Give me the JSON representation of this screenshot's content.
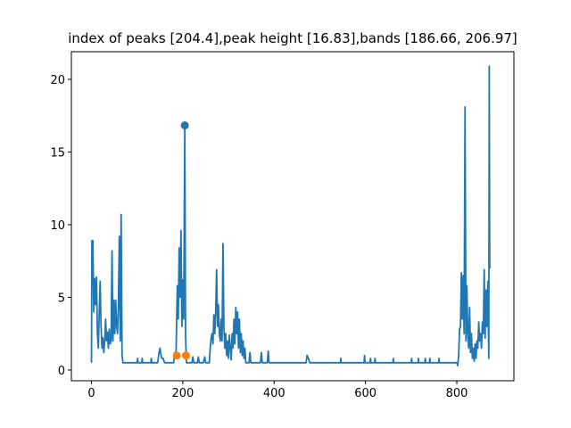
{
  "chart_data": {
    "type": "line",
    "title": "index of peaks [204.4],peak height [16.83],bands [186.66, 206.97]",
    "xlim": [
      -44,
      925
    ],
    "ylim": [
      -0.74,
      21.9
    ],
    "xticks": [
      0,
      200,
      400,
      600,
      800
    ],
    "yticks": [
      0,
      5,
      10,
      15,
      20
    ],
    "series": [
      {
        "type": "line",
        "color": "#1f77b4",
        "x": [
          0,
          1,
          3,
          5,
          7,
          9,
          11,
          13,
          15,
          17,
          19,
          21,
          23,
          25,
          27,
          29,
          31,
          33,
          35,
          37,
          39,
          41,
          43,
          45,
          47,
          49,
          51,
          53,
          55,
          57,
          59,
          61,
          63,
          65,
          67,
          69,
          100,
          101,
          102,
          110,
          111,
          112,
          130,
          131,
          132,
          145,
          148,
          150,
          152,
          154,
          157,
          160,
          180,
          182,
          185,
          188,
          190,
          192,
          194,
          196,
          198,
          200,
          202,
          204.4,
          206,
          208,
          220,
          222,
          224,
          232,
          234,
          236,
          245,
          248,
          250,
          258,
          260,
          262,
          264,
          266,
          268,
          270,
          272,
          274,
          276,
          278,
          280,
          282,
          284,
          286,
          288,
          290,
          292,
          294,
          296,
          298,
          300,
          302,
          304,
          306,
          308,
          310,
          312,
          314,
          316,
          318,
          320,
          322,
          324,
          326,
          328,
          330,
          332,
          334,
          336,
          338,
          345,
          347,
          349,
          370,
          372,
          374,
          385,
          387,
          389,
          470,
          472,
          475,
          478,
          545,
          546,
          547,
          597,
          598,
          599,
          610,
          611,
          612,
          620,
          621,
          622,
          660,
          661,
          662,
          700,
          701,
          702,
          715,
          716,
          717,
          730,
          731,
          732,
          740,
          741,
          742,
          760,
          761,
          762,
          800,
          802,
          804,
          806,
          808,
          810,
          812,
          814,
          816,
          818,
          820,
          822,
          824,
          826,
          828,
          830,
          832,
          834,
          836,
          838,
          840,
          842,
          844,
          846,
          848,
          850,
          852,
          854,
          856,
          858,
          860,
          862,
          864,
          866,
          868,
          870,
          871,
          872,
          873
        ],
        "values": [
          0.5,
          8.9,
          8.9,
          4,
          6.3,
          4.5,
          6.4,
          2.5,
          1.5,
          4,
          6.1,
          3,
          1.5,
          2.2,
          1.2,
          2,
          3.5,
          2,
          2.6,
          1.5,
          2.8,
          1.8,
          2,
          8.2,
          2,
          4.8,
          2.5,
          4.8,
          3,
          2.5,
          4.5,
          9.2,
          2,
          10.7,
          1,
          0.5,
          0.5,
          0.8,
          0.5,
          0.5,
          0.8,
          0.5,
          0.5,
          0.8,
          0.5,
          0.5,
          1.2,
          1.5,
          1.1,
          0.8,
          0.8,
          0.5,
          0.5,
          1.2,
          0.8,
          5.8,
          3.5,
          8.4,
          5,
          9.6,
          3,
          6.2,
          3.5,
          16.83,
          2.4,
          0.5,
          0.5,
          0.9,
          0.5,
          0.5,
          0.9,
          0.5,
          0.5,
          0.9,
          0.5,
          0.5,
          1.5,
          2.2,
          2.5,
          1.8,
          3.8,
          2.5,
          4,
          6.9,
          3,
          4.5,
          2.5,
          2,
          3.5,
          2,
          8.7,
          3,
          1.5,
          2.5,
          1,
          2,
          0.8,
          2.4,
          1.5,
          0.7,
          2.5,
          1.5,
          3.5,
          1.8,
          4.3,
          2.5,
          4,
          1.5,
          3.5,
          1.2,
          2.5,
          1,
          2,
          0.8,
          1.5,
          0.5,
          0.5,
          1.2,
          0.5,
          0.5,
          1.2,
          0.5,
          0.5,
          1.3,
          0.5,
          0.5,
          1.0,
          0.8,
          0.5,
          0.5,
          0.8,
          0.5,
          0.5,
          1.0,
          0.5,
          0.5,
          0.8,
          0.5,
          0.5,
          0.8,
          0.5,
          0.5,
          0.8,
          0.5,
          0.5,
          0.8,
          0.5,
          0.5,
          0.8,
          0.5,
          0.5,
          0.8,
          0.5,
          0.5,
          0.8,
          0.5,
          0.5,
          0.8,
          0.5,
          0.5,
          0.3,
          1.0,
          2.8,
          3,
          6.7,
          3.5,
          6.5,
          2.5,
          18.1,
          2,
          5.8,
          2.5,
          1.5,
          4.3,
          1.2,
          2.5,
          0.8,
          1.5,
          0.6,
          1.8,
          0.8,
          2,
          1.5,
          3.3,
          2,
          2.5,
          1.5,
          3.3,
          2.5,
          6.9,
          2.2,
          5.5,
          3,
          6.1,
          0.8,
          20.9,
          7.2,
          7
        ]
      },
      {
        "type": "scatter",
        "color": "#1f77b4",
        "x": [
          204.4
        ],
        "values": [
          16.83
        ]
      },
      {
        "type": "scatter",
        "color": "#ff7f0e",
        "x": [
          186.66,
          206.97
        ],
        "values": [
          1,
          1
        ]
      }
    ]
  }
}
